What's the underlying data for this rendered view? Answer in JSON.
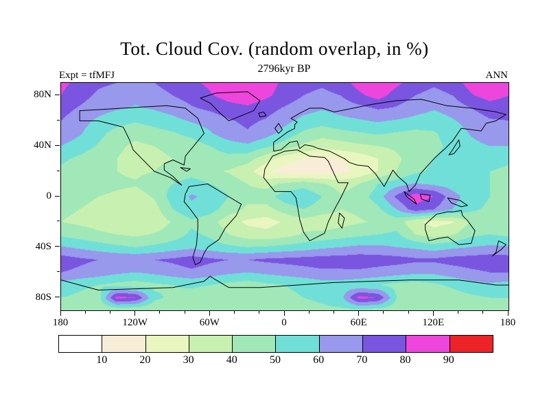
{
  "header": {
    "title": "Tot. Cloud Cov. (random overlap, in %)",
    "subtitle": "2796kyr BP",
    "experiment_label": "Expt = tfMFJ",
    "season_label": "ANN"
  },
  "chart_data": {
    "type": "heatmap",
    "field": "total cloud cover",
    "units": "%",
    "projection": "equirectangular world map, filled contours with coastlines",
    "title": "Tot. Cloud Cov. (random overlap, in %)",
    "subtitle": "2796kyr BP",
    "annotations": [
      "Expt = tfMFJ",
      "ANN"
    ],
    "levels": [
      10,
      20,
      30,
      40,
      50,
      60,
      70,
      80,
      90
    ],
    "colors": [
      "#ffffff",
      "#f8eed8",
      "#eaf6c0",
      "#c8f0b0",
      "#a0e8b8",
      "#70dfd8",
      "#9898ec",
      "#7a55e0",
      "#ee46dc",
      "#ec2428"
    ],
    "colorbar_labels": [
      "10",
      "20",
      "30",
      "40",
      "50",
      "60",
      "70",
      "80",
      "90"
    ],
    "lat_ticks": [
      {
        "value": 80,
        "label": "80N"
      },
      {
        "value": 40,
        "label": "40N"
      },
      {
        "value": 0,
        "label": "0"
      },
      {
        "value": -40,
        "label": "40S"
      },
      {
        "value": -80,
        "label": "80S"
      }
    ],
    "lat_minor_ticks": [
      60,
      20,
      -20,
      -60
    ],
    "lon_ticks": [
      {
        "value": -180,
        "label": "180"
      },
      {
        "value": -120,
        "label": "120W"
      },
      {
        "value": -60,
        "label": "60W"
      },
      {
        "value": 0,
        "label": "0"
      },
      {
        "value": 60,
        "label": "60E"
      },
      {
        "value": 120,
        "label": "120E"
      },
      {
        "value": 180,
        "label": "180"
      }
    ],
    "lon_minor_ticks": [
      -160,
      -140,
      -100,
      -80,
      -40,
      -20,
      20,
      40,
      80,
      100,
      140,
      160
    ],
    "grid": {
      "lats": [
        90,
        80,
        70,
        60,
        50,
        40,
        30,
        20,
        10,
        0,
        -10,
        -20,
        -30,
        -40,
        -50,
        -60,
        -70,
        -80,
        -90
      ],
      "lons": [
        -180,
        -165,
        -150,
        -135,
        -120,
        -105,
        -90,
        -75,
        -60,
        -45,
        -30,
        -15,
        0,
        15,
        30,
        45,
        60,
        75,
        90,
        105,
        120,
        135,
        150,
        165,
        180
      ],
      "values": [
        [
          82,
          78,
          72,
          70,
          68,
          70,
          74,
          78,
          82,
          86,
          88,
          84,
          78,
          74,
          72,
          76,
          84,
          88,
          82,
          76,
          72,
          76,
          84,
          86,
          82
        ],
        [
          80,
          74,
          68,
          65,
          63,
          66,
          70,
          74,
          79,
          84,
          87,
          82,
          76,
          70,
          67,
          70,
          78,
          84,
          76,
          70,
          66,
          70,
          79,
          84,
          80
        ],
        [
          74,
          69,
          64,
          61,
          59,
          61,
          64,
          69,
          72,
          76,
          78,
          74,
          69,
          64,
          61,
          64,
          67,
          71,
          69,
          64,
          61,
          64,
          70,
          75,
          74
        ],
        [
          70,
          64,
          58,
          54,
          51,
          54,
          57,
          61,
          64,
          69,
          72,
          69,
          63,
          57,
          54,
          57,
          59,
          61,
          59,
          57,
          55,
          59,
          64,
          69,
          70
        ],
        [
          67,
          61,
          53,
          46,
          43,
          46,
          49,
          53,
          59,
          66,
          69,
          64,
          56,
          48,
          44,
          47,
          49,
          51,
          49,
          47,
          49,
          54,
          61,
          66,
          67
        ],
        [
          60,
          55,
          49,
          42,
          38,
          40,
          42,
          45,
          50,
          55,
          58,
          52,
          45,
          38,
          33,
          35,
          38,
          40,
          42,
          45,
          48,
          52,
          57,
          60,
          60
        ],
        [
          52,
          48,
          44,
          40,
          36,
          38,
          40,
          42,
          45,
          47,
          44,
          34,
          25,
          20,
          18,
          20,
          24,
          30,
          38,
          45,
          50,
          53,
          55,
          54,
          52
        ],
        [
          48,
          45,
          42,
          40,
          38,
          40,
          43,
          45,
          42,
          39,
          34,
          22,
          15,
          12,
          14,
          17,
          22,
          30,
          40,
          48,
          52,
          54,
          52,
          50,
          48
        ],
        [
          50,
          47,
          44,
          42,
          41,
          45,
          50,
          55,
          50,
          45,
          40,
          36,
          42,
          46,
          41,
          36,
          40,
          50,
          56,
          61,
          58,
          55,
          52,
          50,
          50
        ],
        [
          45,
          42,
          40,
          38,
          36,
          41,
          55,
          61,
          58,
          50,
          43,
          46,
          55,
          58,
          50,
          41,
          45,
          55,
          72,
          86,
          80,
          64,
          55,
          50,
          45
        ],
        [
          42,
          40,
          38,
          35,
          33,
          36,
          50,
          58,
          54,
          45,
          38,
          36,
          45,
          50,
          45,
          40,
          42,
          48,
          60,
          76,
          70,
          60,
          52,
          48,
          42
        ],
        [
          40,
          38,
          36,
          33,
          31,
          33,
          41,
          48,
          44,
          34,
          28,
          26,
          31,
          36,
          33,
          36,
          39,
          41,
          45,
          32,
          26,
          29,
          41,
          42,
          40
        ],
        [
          48,
          45,
          42,
          40,
          38,
          41,
          45,
          52,
          48,
          40,
          35,
          33,
          36,
          41,
          43,
          45,
          48,
          50,
          52,
          40,
          35,
          39,
          48,
          50,
          48
        ],
        [
          61,
          58,
          55,
          52,
          50,
          52,
          55,
          58,
          55,
          52,
          50,
          51,
          53,
          55,
          58,
          60,
          62,
          62,
          60,
          58,
          55,
          58,
          60,
          62,
          61
        ],
        [
          75,
          72,
          70,
          69,
          68,
          70,
          72,
          75,
          72,
          70,
          70,
          72,
          73,
          74,
          75,
          75,
          76,
          75,
          74,
          72,
          72,
          74,
          75,
          76,
          75
        ],
        [
          70,
          68,
          65,
          62,
          60,
          62,
          65,
          68,
          65,
          62,
          60,
          62,
          64,
          66,
          68,
          68,
          68,
          66,
          64,
          62,
          62,
          65,
          68,
          70,
          70
        ],
        [
          56,
          52,
          50,
          47,
          45,
          48,
          50,
          52,
          50,
          47,
          45,
          48,
          50,
          52,
          55,
          55,
          52,
          50,
          47,
          45,
          48,
          52,
          56,
          58,
          56
        ],
        [
          50,
          48,
          45,
          84,
          80,
          52,
          48,
          45,
          42,
          40,
          42,
          45,
          48,
          50,
          52,
          56,
          84,
          79,
          50,
          45,
          42,
          45,
          48,
          50,
          50
        ],
        [
          45,
          45,
          42,
          40,
          40,
          42,
          45,
          45,
          44,
          42,
          42,
          44,
          45,
          46,
          48,
          48,
          46,
          45,
          44,
          42,
          42,
          44,
          45,
          46,
          45
        ]
      ]
    }
  }
}
